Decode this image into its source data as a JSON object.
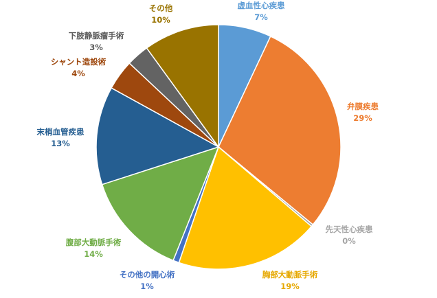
{
  "chart_data": {
    "type": "pie",
    "title": "",
    "slices": [
      {
        "label": "虚血性心疾患",
        "value": 7,
        "value_label": "7%",
        "color": "#5b9bd5",
        "label_color": "#5b9bd5"
      },
      {
        "label": "弁膜疾患",
        "value": 29,
        "value_label": "29%",
        "color": "#ed7d31",
        "label_color": "#ed7d31"
      },
      {
        "label": "先天性心疾患",
        "value": 0.3,
        "value_label": "0%",
        "color": "#a5a5a5",
        "label_color": "#a5a5a5"
      },
      {
        "label": "胸部大動脈手術",
        "value": 19,
        "value_label": "19%",
        "color": "#ffc000",
        "label_color": "#e6a800"
      },
      {
        "label": "その他の開心術",
        "value": 0.8,
        "value_label": "1%",
        "color": "#4472c4",
        "label_color": "#4472c4"
      },
      {
        "label": "腹部大動脈手術",
        "value": 14,
        "value_label": "14%",
        "color": "#70ad47",
        "label_color": "#70ad47"
      },
      {
        "label": "末梢血管疾患",
        "value": 13,
        "value_label": "13%",
        "color": "#255e91",
        "label_color": "#255e91"
      },
      {
        "label": "シャント造設術",
        "value": 4,
        "value_label": "4%",
        "color": "#9e480e",
        "label_color": "#9e480e"
      },
      {
        "label": "下肢静脈瘤手術",
        "value": 3,
        "value_label": "3%",
        "color": "#636363",
        "label_color": "#595959"
      },
      {
        "label": "その他",
        "value": 10,
        "value_label": "10%",
        "color": "#997300",
        "label_color": "#997300"
      }
    ],
    "legend": "none"
  }
}
